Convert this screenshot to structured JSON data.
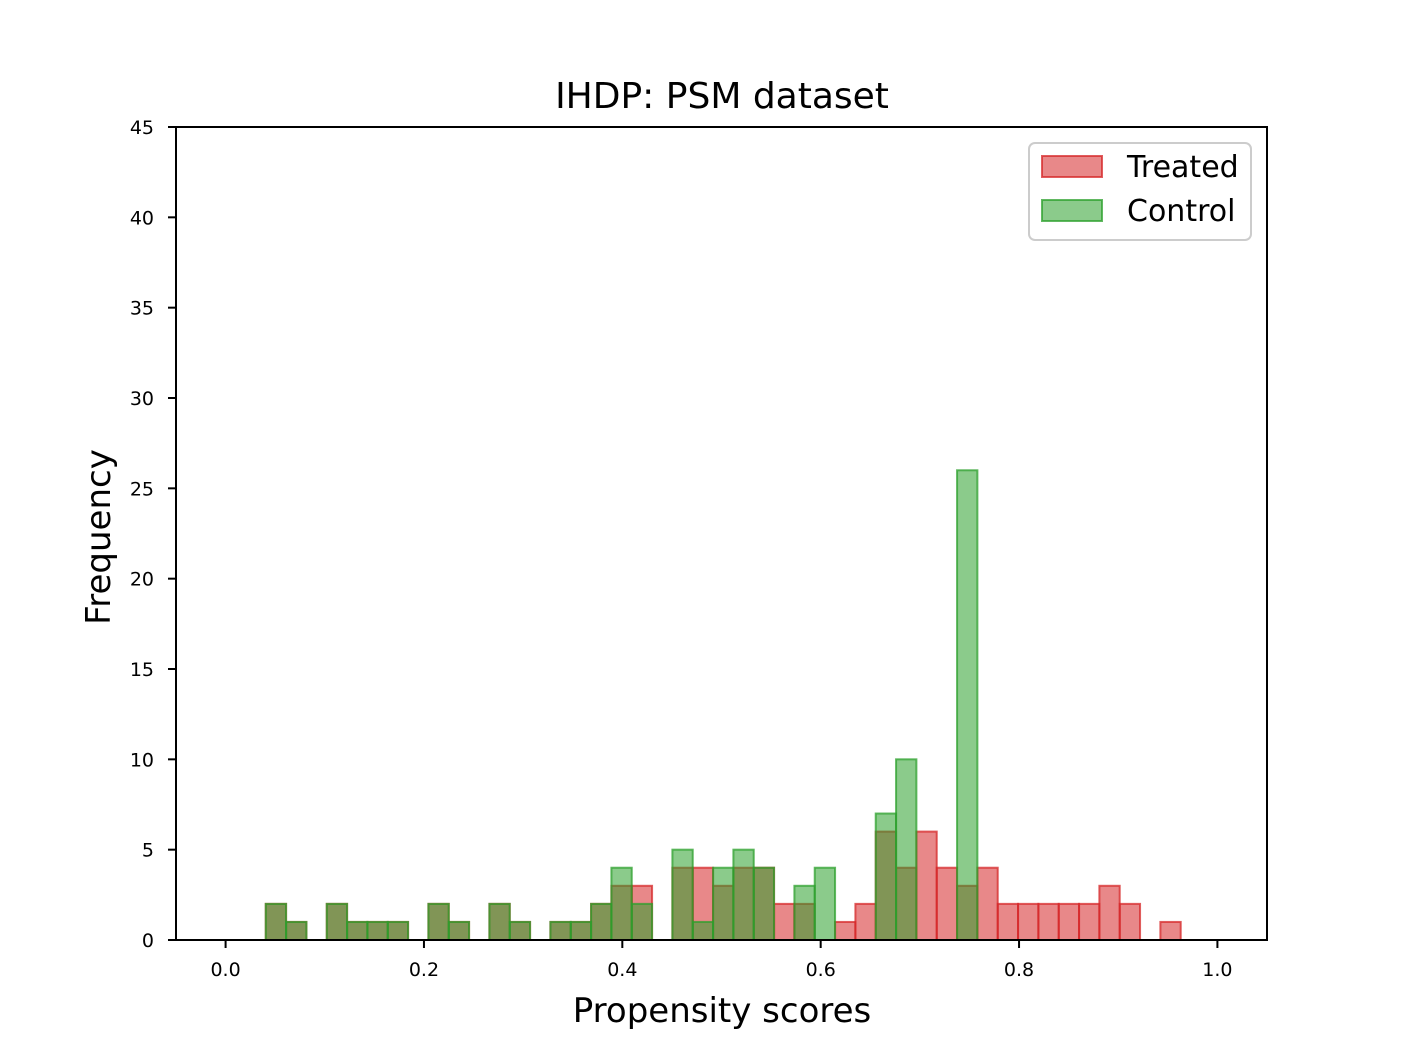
{
  "chart_data": {
    "type": "bar",
    "subtype": "overlaid-histogram",
    "title": "IHDP: PSM dataset",
    "xlabel": "Propensity scores",
    "ylabel": "Frequency",
    "xlim": [
      -0.05,
      1.05
    ],
    "ylim": [
      0,
      45
    ],
    "x_ticks": [
      "0.0",
      "0.2",
      "0.4",
      "0.6",
      "0.8",
      "1.0"
    ],
    "y_ticks": [
      "0",
      "5",
      "10",
      "15",
      "20",
      "25",
      "30",
      "35",
      "40",
      "45"
    ],
    "bin_width": 0.0205,
    "legend_position": "top-right",
    "series": [
      {
        "name": "Treated",
        "color": "#d62728",
        "fill": "#d97f7f",
        "bins": [
          {
            "x0": 0.0405,
            "count": 2
          },
          {
            "x0": 0.061,
            "count": 1
          },
          {
            "x0": 0.102,
            "count": 2
          },
          {
            "x0": 0.1225,
            "count": 1
          },
          {
            "x0": 0.143,
            "count": 1
          },
          {
            "x0": 0.1635,
            "count": 1
          },
          {
            "x0": 0.2045,
            "count": 2
          },
          {
            "x0": 0.225,
            "count": 1
          },
          {
            "x0": 0.266,
            "count": 2
          },
          {
            "x0": 0.2865,
            "count": 1
          },
          {
            "x0": 0.3275,
            "count": 1
          },
          {
            "x0": 0.348,
            "count": 1
          },
          {
            "x0": 0.3685,
            "count": 2
          },
          {
            "x0": 0.389,
            "count": 3
          },
          {
            "x0": 0.4095,
            "count": 3
          },
          {
            "x0": 0.4505,
            "count": 4
          },
          {
            "x0": 0.471,
            "count": 4
          },
          {
            "x0": 0.4915,
            "count": 3
          },
          {
            "x0": 0.512,
            "count": 4
          },
          {
            "x0": 0.5325,
            "count": 4
          },
          {
            "x0": 0.553,
            "count": 2
          },
          {
            "x0": 0.5735,
            "count": 2
          },
          {
            "x0": 0.6145,
            "count": 1
          },
          {
            "x0": 0.635,
            "count": 2
          },
          {
            "x0": 0.6555,
            "count": 6
          },
          {
            "x0": 0.676,
            "count": 4
          },
          {
            "x0": 0.6965,
            "count": 6
          },
          {
            "x0": 0.717,
            "count": 4
          },
          {
            "x0": 0.7375,
            "count": 3
          },
          {
            "x0": 0.758,
            "count": 4
          },
          {
            "x0": 0.7785,
            "count": 2
          },
          {
            "x0": 0.799,
            "count": 2
          },
          {
            "x0": 0.8195,
            "count": 2
          },
          {
            "x0": 0.84,
            "count": 2
          },
          {
            "x0": 0.8605,
            "count": 2
          },
          {
            "x0": 0.881,
            "count": 3
          },
          {
            "x0": 0.9015,
            "count": 2
          },
          {
            "x0": 0.9425,
            "count": 1
          }
        ]
      },
      {
        "name": "Control",
        "color": "#2ca02c",
        "fill": "#7fbf7f",
        "bins": [
          {
            "x0": 0.0405,
            "count": 2
          },
          {
            "x0": 0.061,
            "count": 1
          },
          {
            "x0": 0.102,
            "count": 2
          },
          {
            "x0": 0.1225,
            "count": 1
          },
          {
            "x0": 0.143,
            "count": 1
          },
          {
            "x0": 0.1635,
            "count": 1
          },
          {
            "x0": 0.2045,
            "count": 2
          },
          {
            "x0": 0.225,
            "count": 1
          },
          {
            "x0": 0.266,
            "count": 2
          },
          {
            "x0": 0.2865,
            "count": 1
          },
          {
            "x0": 0.3275,
            "count": 1
          },
          {
            "x0": 0.348,
            "count": 1
          },
          {
            "x0": 0.3685,
            "count": 2
          },
          {
            "x0": 0.389,
            "count": 4
          },
          {
            "x0": 0.4095,
            "count": 2
          },
          {
            "x0": 0.4505,
            "count": 5
          },
          {
            "x0": 0.471,
            "count": 1
          },
          {
            "x0": 0.4915,
            "count": 4
          },
          {
            "x0": 0.512,
            "count": 5
          },
          {
            "x0": 0.5325,
            "count": 4
          },
          {
            "x0": 0.5735,
            "count": 3
          },
          {
            "x0": 0.594,
            "count": 4
          },
          {
            "x0": 0.6555,
            "count": 7
          },
          {
            "x0": 0.676,
            "count": 10
          },
          {
            "x0": 0.7375,
            "count": 26
          }
        ]
      }
    ]
  }
}
